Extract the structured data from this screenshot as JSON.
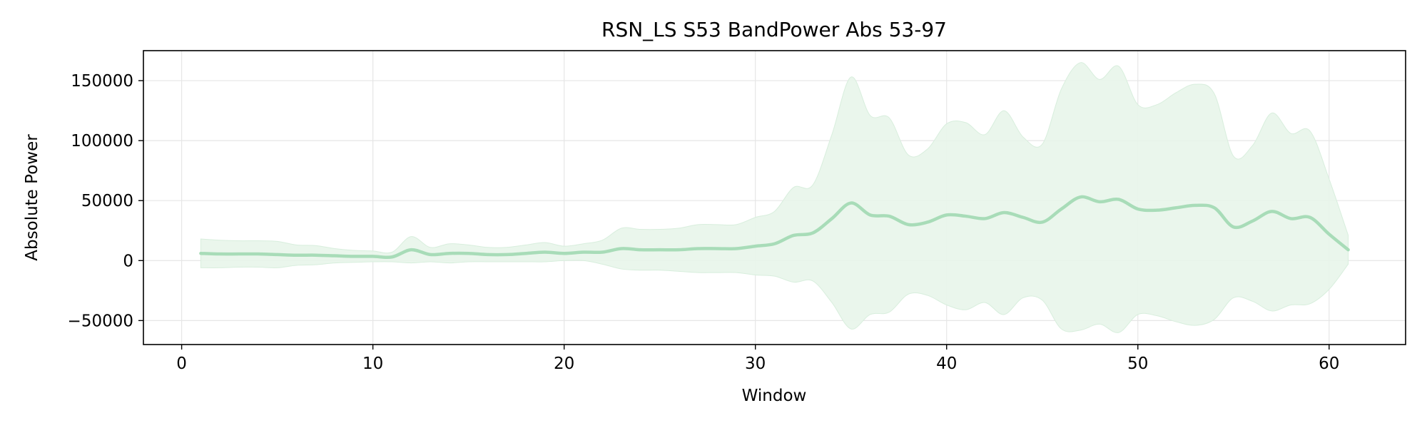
{
  "chart_data": {
    "type": "line",
    "title": "RSN_LS S53 BandPower Abs 53-97",
    "xlabel": "Window",
    "ylabel": "Absolute Power",
    "xlim": [
      -2,
      64
    ],
    "ylim": [
      -70000,
      175000
    ],
    "xticks": [
      0,
      10,
      20,
      30,
      40,
      50,
      60
    ],
    "yticks": [
      -50000,
      0,
      50000,
      100000,
      150000
    ],
    "ytick_labels": [
      "−50000",
      "0",
      "50000",
      "100000",
      "150000"
    ],
    "grid": true,
    "colors": {
      "line": "#a8dcb8",
      "band": "#e8f5ea",
      "band_edge": "#d8eedd",
      "grid": "#e6e6e6"
    },
    "series": [
      {
        "x": [
          1,
          2,
          3,
          4,
          5,
          6,
          7,
          8,
          9,
          10,
          11,
          12,
          13,
          14,
          15,
          16,
          17,
          18,
          19,
          20,
          21,
          22,
          23,
          24,
          25,
          26,
          27,
          28,
          29,
          30,
          31,
          32,
          33,
          34,
          35,
          36,
          37,
          38,
          39,
          40,
          41,
          42,
          43,
          44,
          45,
          46,
          47,
          48,
          49,
          50,
          51,
          52,
          53,
          54,
          55,
          56,
          57,
          58,
          59,
          60,
          61
        ],
        "mean": [
          6000,
          5500,
          5500,
          5500,
          5000,
          4500,
          4500,
          4000,
          3500,
          3500,
          3000,
          9000,
          5000,
          6000,
          6000,
          5000,
          5000,
          6000,
          7000,
          6000,
          7000,
          7000,
          10000,
          9000,
          9000,
          9000,
          10000,
          10000,
          10000,
          12000,
          14000,
          21000,
          23000,
          35000,
          48000,
          38000,
          37000,
          30000,
          32000,
          38000,
          37000,
          35000,
          40000,
          36000,
          32000,
          43000,
          53000,
          49000,
          51000,
          43000,
          42000,
          44000,
          46000,
          44000,
          28000,
          33000,
          41000,
          35000,
          36000,
          22000,
          9000
        ],
        "upper": [
          18000,
          17000,
          16500,
          16500,
          16000,
          13000,
          12500,
          10000,
          8500,
          8000,
          7000,
          20000,
          11000,
          14000,
          13000,
          11000,
          11000,
          13000,
          15000,
          12000,
          14000,
          17000,
          27000,
          26000,
          26000,
          27000,
          30000,
          30000,
          30000,
          36000,
          41000,
          61000,
          63000,
          105000,
          153000,
          121000,
          119000,
          88000,
          93000,
          114000,
          115000,
          105000,
          125000,
          103000,
          97000,
          143000,
          165000,
          151000,
          162000,
          130000,
          130000,
          140000,
          147000,
          139000,
          87000,
          96000,
          123000,
          106000,
          108000,
          68000,
          21000
        ],
        "lower": [
          -6000,
          -6000,
          -5500,
          -5500,
          -6000,
          -4000,
          -3500,
          -2000,
          -1500,
          -1000,
          -1000,
          -2000,
          -1000,
          -2000,
          -1000,
          -1000,
          -1000,
          -1000,
          -1000,
          0,
          0,
          -3000,
          -7000,
          -8000,
          -8000,
          -9000,
          -10000,
          -10000,
          -10000,
          -12000,
          -13000,
          -18000,
          -17000,
          -35000,
          -57000,
          -45000,
          -43000,
          -28000,
          -29000,
          -37000,
          -41000,
          -35000,
          -45000,
          -31000,
          -33000,
          -57000,
          -58000,
          -53000,
          -60000,
          -45000,
          -46000,
          -51000,
          -54000,
          -49000,
          -31000,
          -34000,
          -42000,
          -37000,
          -36000,
          -24000,
          -3000
        ]
      }
    ]
  }
}
